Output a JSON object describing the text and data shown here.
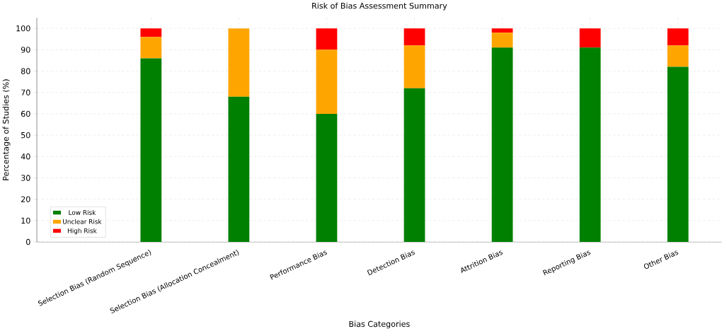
{
  "chart_data": {
    "type": "bar",
    "title": "Risk of Bias Assessment Summary",
    "xlabel": "Bias Categories",
    "ylabel": "Percentage of Studies (%)",
    "categories": [
      "Selection Bias (Random Sequence)",
      "Selection Bias (Allocation Concealment)",
      "Performance Bias",
      "Detection Bias",
      "Attrition Bias",
      "Reporting Bias",
      "Other Bias"
    ],
    "stacked": true,
    "series": [
      {
        "name": "Low Risk",
        "color": "#008000",
        "values": [
          86,
          68,
          60,
          72,
          91,
          91,
          82
        ]
      },
      {
        "name": "Unclear Risk",
        "color": "#ffa500",
        "values": [
          10,
          32,
          30,
          20,
          7,
          0,
          10
        ]
      },
      {
        "name": "High Risk",
        "color": "#ff0000",
        "values": [
          4,
          0,
          10,
          8,
          2,
          9,
          8
        ]
      }
    ],
    "ylim": [
      0,
      105
    ],
    "yticks": [
      0,
      10,
      20,
      30,
      40,
      50,
      60,
      70,
      80,
      90,
      100
    ],
    "grid": true,
    "legend": "bottom left"
  }
}
